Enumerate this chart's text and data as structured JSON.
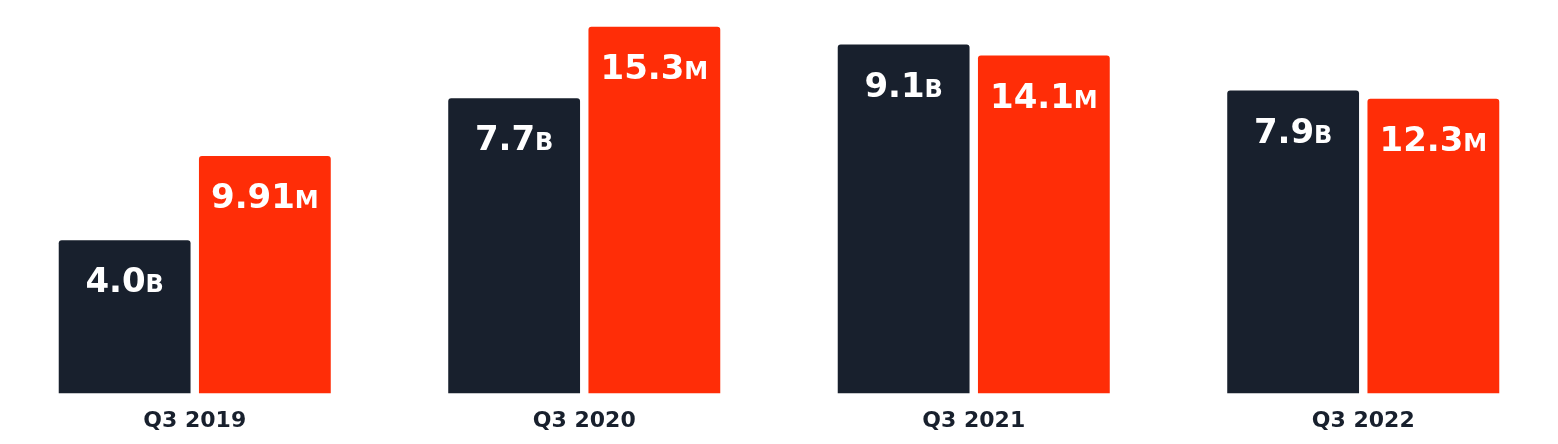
{
  "chart_data": {
    "type": "bar",
    "categories": [
      "Q3 2019",
      "Q3 2020",
      "Q3 2021",
      "Q3 2022"
    ],
    "series": [
      {
        "color": "#18202d",
        "values": [
          4.0,
          7.7,
          9.1,
          7.9
        ],
        "value_labels": [
          "4.0B",
          "7.7B",
          "9.1B",
          "7.9B"
        ]
      },
      {
        "color": "#ff2d07",
        "axis": "y2",
        "values": [
          9.91,
          15.3,
          14.1,
          12.3
        ],
        "value_labels": [
          "9.91M",
          "15.3M",
          "14.1M",
          "12.3M"
        ]
      }
    ],
    "tick_labels": "x"
  }
}
